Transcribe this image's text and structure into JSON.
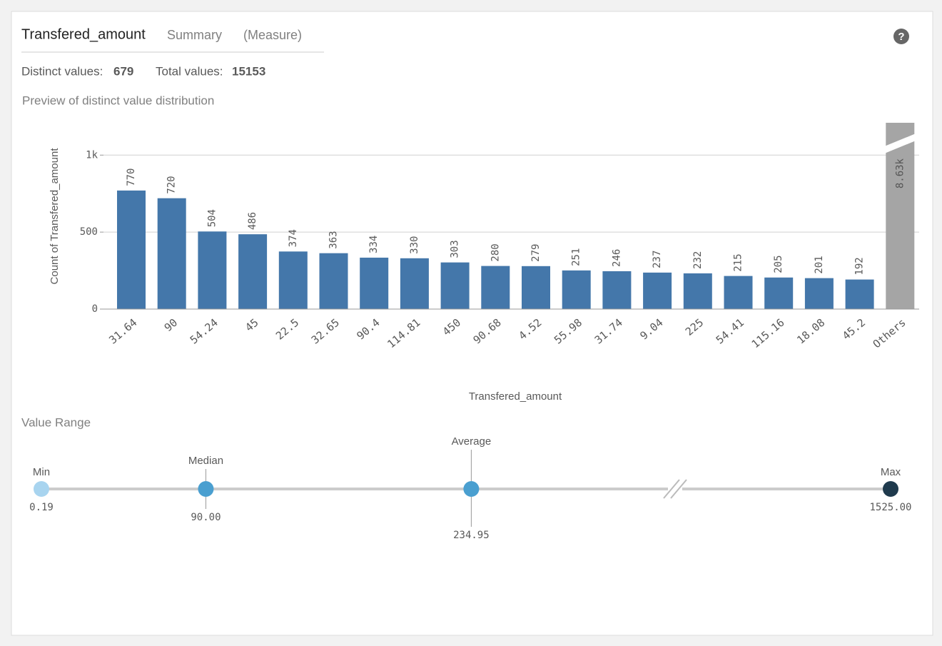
{
  "header": {
    "field": "Transfered_amount",
    "summary": "Summary",
    "kind": "(Measure)",
    "help_icon": "?"
  },
  "stats": {
    "distinct_label": "Distinct values:",
    "distinct_value": 679,
    "total_label": "Total values:",
    "total_value": 15153
  },
  "chart_data": {
    "type": "bar",
    "title": "Preview of distinct value distribution",
    "x_label": "Transfered_amount",
    "y_label": "Count of Transfered_amount",
    "categories": [
      "31.64",
      "90",
      "54.24",
      "45",
      "22.5",
      "32.65",
      "90.4",
      "114.81",
      "450",
      "90.68",
      "4.52",
      "55.98",
      "31.74",
      "9.04",
      "225",
      "54.41",
      "115.16",
      "18.08",
      "45.2",
      "Others"
    ],
    "values": [
      770,
      720,
      504,
      486,
      374,
      363,
      334,
      330,
      303,
      280,
      279,
      251,
      246,
      237,
      232,
      215,
      205,
      201,
      192,
      8630
    ],
    "value_labels": [
      "770",
      "720",
      "504",
      "486",
      "374",
      "363",
      "334",
      "330",
      "303",
      "280",
      "279",
      "251",
      "246",
      "237",
      "232",
      "215",
      "205",
      "201",
      "192",
      "8.63k"
    ],
    "color": "#4477aa",
    "others_color": "#a5a5a5",
    "ylim": [
      0,
      1210
    ],
    "yticks": [
      0,
      500,
      {
        "value": 1000,
        "label": "1k"
      }
    ],
    "grid": true
  },
  "value_range": {
    "title": "Value Range",
    "points": [
      {
        "label": "Min",
        "value": 0.19,
        "color": "#a8d4ef"
      },
      {
        "label": "Median",
        "value": 90,
        "value_label": "90.00",
        "color": "#4a9fd0"
      },
      {
        "label": "Average",
        "value": 234.95,
        "color": "#4a9fd0"
      },
      {
        "label": "Max",
        "value": 1525,
        "value_label": "1525.00",
        "color": "#1f3a4d"
      }
    ]
  }
}
